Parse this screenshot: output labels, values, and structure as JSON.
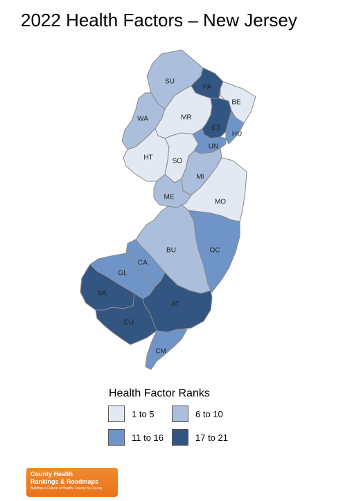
{
  "title": "2022 Health Factors – New Jersey",
  "colors": {
    "rank_1_5": "#e2e9f3",
    "rank_6_10": "#abbedc",
    "rank_11_16": "#6f95c8",
    "rank_17_21": "#335582",
    "border": "#8a8a8a"
  },
  "counties": [
    {
      "code": "SU",
      "rank_group": "6 to 10"
    },
    {
      "code": "PA",
      "rank_group": "17 to 21"
    },
    {
      "code": "BE",
      "rank_group": "1 to 5"
    },
    {
      "code": "WA",
      "rank_group": "6 to 10"
    },
    {
      "code": "MR",
      "rank_group": "1 to 5"
    },
    {
      "code": "ES",
      "rank_group": "17 to 21"
    },
    {
      "code": "HU",
      "rank_group": "11 to 16"
    },
    {
      "code": "UN",
      "rank_group": "11 to 16"
    },
    {
      "code": "HT",
      "rank_group": "1 to 5"
    },
    {
      "code": "SO",
      "rank_group": "1 to 5"
    },
    {
      "code": "MI",
      "rank_group": "6 to 10"
    },
    {
      "code": "ME",
      "rank_group": "6 to 10"
    },
    {
      "code": "MO",
      "rank_group": "1 to 5"
    },
    {
      "code": "BU",
      "rank_group": "6 to 10"
    },
    {
      "code": "OC",
      "rank_group": "11 to 16"
    },
    {
      "code": "CA",
      "rank_group": "11 to 16"
    },
    {
      "code": "GL",
      "rank_group": "11 to 16"
    },
    {
      "code": "SA",
      "rank_group": "17 to 21"
    },
    {
      "code": "AT",
      "rank_group": "17 to 21"
    },
    {
      "code": "CU",
      "rank_group": "17 to 21"
    },
    {
      "code": "CM",
      "rank_group": "11 to 16"
    }
  ],
  "legend": {
    "title": "Health Factor Ranks",
    "items": [
      {
        "label": "1 to 5",
        "color": "#e2e9f3"
      },
      {
        "label": "6 to 10",
        "color": "#abbedc"
      },
      {
        "label": "11 to 16",
        "color": "#6f95c8"
      },
      {
        "label": "17 to 21",
        "color": "#335582"
      }
    ]
  },
  "logo": {
    "line1": "County Health",
    "line2": "Rankings & Roadmaps",
    "tagline": "Building a Culture of Health, County by County"
  }
}
